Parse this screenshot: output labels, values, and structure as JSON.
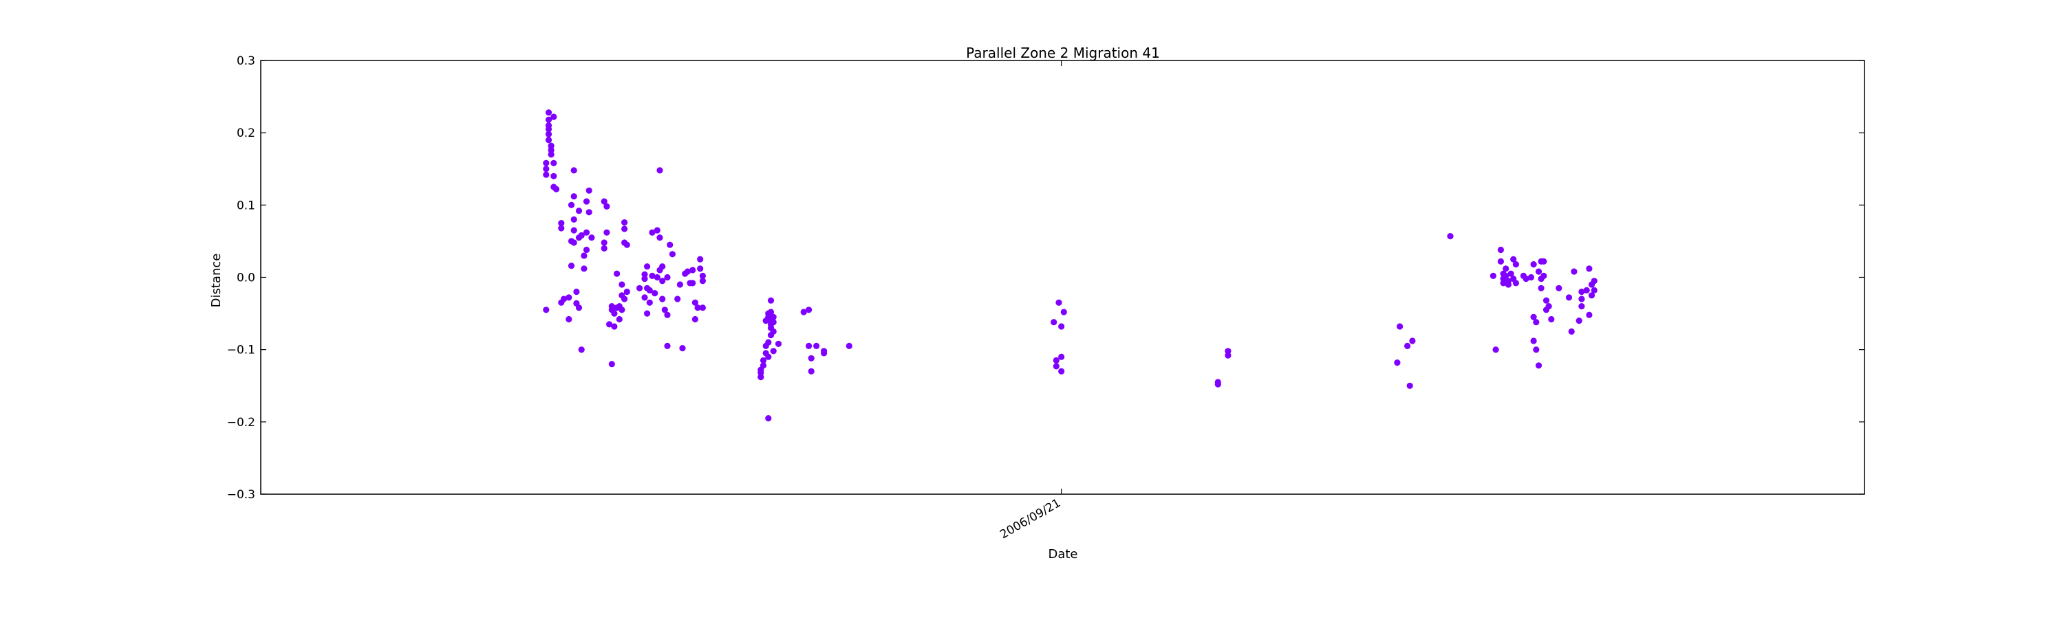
{
  "chart_data": {
    "type": "scatter",
    "title": "Parallel Zone 2 Migration 41",
    "xlabel": "Date",
    "ylabel": "Distance",
    "ylim": [
      -0.3,
      0.3
    ],
    "xlim": [
      "2005-11-08",
      "2007-08-05"
    ],
    "yticks": [
      "−0.3",
      "−0.2",
      "−0.1",
      "0.0",
      "0.1",
      "0.2",
      "0.3"
    ],
    "xticks": [
      {
        "date": "2006-09-21",
        "label": "2006/09/21"
      }
    ],
    "grid": false,
    "marker_color": "#8000ff",
    "series": [
      {
        "points": [
          [
            "2006-03-02",
            0.228
          ],
          [
            "2006-03-02",
            0.218
          ],
          [
            "2006-03-02",
            0.21
          ],
          [
            "2006-03-02",
            0.205
          ],
          [
            "2006-03-02",
            0.198
          ],
          [
            "2006-03-02",
            0.19
          ],
          [
            "2006-03-03",
            0.182
          ],
          [
            "2006-03-03",
            0.176
          ],
          [
            "2006-03-03",
            0.17
          ],
          [
            "2006-03-04",
            0.222
          ],
          [
            "2006-03-04",
            0.158
          ],
          [
            "2006-03-04",
            0.14
          ],
          [
            "2006-03-04",
            0.125
          ],
          [
            "2006-03-05",
            0.122
          ],
          [
            "2006-03-01",
            0.158
          ],
          [
            "2006-03-01",
            0.15
          ],
          [
            "2006-03-01",
            0.142
          ],
          [
            "2006-03-01",
            -0.045
          ],
          [
            "2006-03-07",
            0.075
          ],
          [
            "2006-03-07",
            0.068
          ],
          [
            "2006-03-07",
            -0.035
          ],
          [
            "2006-03-08",
            -0.03
          ],
          [
            "2006-03-10",
            -0.058
          ],
          [
            "2006-03-10",
            -0.028
          ],
          [
            "2006-03-11",
            0.1
          ],
          [
            "2006-03-11",
            0.05
          ],
          [
            "2006-03-11",
            0.016
          ],
          [
            "2006-03-12",
            0.148
          ],
          [
            "2006-03-12",
            0.112
          ],
          [
            "2006-03-12",
            0.08
          ],
          [
            "2006-03-12",
            0.065
          ],
          [
            "2006-03-12",
            0.048
          ],
          [
            "2006-03-13",
            -0.036
          ],
          [
            "2006-03-13",
            -0.02
          ],
          [
            "2006-03-14",
            0.055
          ],
          [
            "2006-03-14",
            0.092
          ],
          [
            "2006-03-14",
            -0.042
          ],
          [
            "2006-03-15",
            -0.1
          ],
          [
            "2006-03-15",
            0.058
          ],
          [
            "2006-03-16",
            0.012
          ],
          [
            "2006-03-16",
            0.03
          ],
          [
            "2006-03-17",
            0.105
          ],
          [
            "2006-03-17",
            0.062
          ],
          [
            "2006-03-17",
            0.038
          ],
          [
            "2006-03-18",
            0.12
          ],
          [
            "2006-03-18",
            0.09
          ],
          [
            "2006-03-19",
            0.055
          ],
          [
            "2006-03-24",
            0.105
          ],
          [
            "2006-03-24",
            0.048
          ],
          [
            "2006-03-24",
            0.04
          ],
          [
            "2006-03-25",
            0.098
          ],
          [
            "2006-03-25",
            0.062
          ],
          [
            "2006-03-26",
            -0.065
          ],
          [
            "2006-03-27",
            -0.045
          ],
          [
            "2006-03-27",
            -0.04
          ],
          [
            "2006-03-27",
            -0.12
          ],
          [
            "2006-03-28",
            -0.068
          ],
          [
            "2006-03-28",
            -0.05
          ],
          [
            "2006-03-29",
            0.005
          ],
          [
            "2006-03-29",
            -0.042
          ],
          [
            "2006-03-30",
            -0.058
          ],
          [
            "2006-03-30",
            -0.04
          ],
          [
            "2006-03-31",
            -0.01
          ],
          [
            "2006-03-31",
            -0.025
          ],
          [
            "2006-03-31",
            -0.045
          ],
          [
            "2006-04-01",
            0.076
          ],
          [
            "2006-04-01",
            0.067
          ],
          [
            "2006-04-01",
            0.048
          ],
          [
            "2006-04-01",
            -0.03
          ],
          [
            "2006-04-02",
            0.045
          ],
          [
            "2006-04-02",
            -0.02
          ],
          [
            "2006-04-07",
            -0.015
          ],
          [
            "2006-04-09",
            0.004
          ],
          [
            "2006-04-09",
            -0.002
          ],
          [
            "2006-04-09",
            -0.028
          ],
          [
            "2006-04-10",
            0.015
          ],
          [
            "2006-04-10",
            -0.015
          ],
          [
            "2006-04-10",
            -0.05
          ],
          [
            "2006-04-11",
            -0.018
          ],
          [
            "2006-04-11",
            -0.035
          ],
          [
            "2006-04-12",
            0.062
          ],
          [
            "2006-04-12",
            0.002
          ],
          [
            "2006-04-13",
            -0.022
          ],
          [
            "2006-04-14",
            0.065
          ],
          [
            "2006-04-14",
            0.0
          ],
          [
            "2006-04-15",
            0.148
          ],
          [
            "2006-04-15",
            0.055
          ],
          [
            "2006-04-15",
            0.01
          ],
          [
            "2006-04-16",
            0.015
          ],
          [
            "2006-04-16",
            -0.005
          ],
          [
            "2006-04-16",
            -0.03
          ],
          [
            "2006-04-17",
            -0.045
          ],
          [
            "2006-04-18",
            0.0
          ],
          [
            "2006-04-18",
            -0.052
          ],
          [
            "2006-04-18",
            -0.095
          ],
          [
            "2006-04-19",
            0.045
          ],
          [
            "2006-04-20",
            0.032
          ],
          [
            "2006-04-22",
            -0.03
          ],
          [
            "2006-04-23",
            -0.01
          ],
          [
            "2006-04-24",
            -0.098
          ],
          [
            "2006-04-25",
            0.005
          ],
          [
            "2006-04-26",
            0.008
          ],
          [
            "2006-04-27",
            -0.008
          ],
          [
            "2006-04-28",
            0.01
          ],
          [
            "2006-04-28",
            -0.008
          ],
          [
            "2006-04-29",
            -0.035
          ],
          [
            "2006-04-29",
            -0.058
          ],
          [
            "2006-04-30",
            -0.042
          ],
          [
            "2006-05-01",
            0.025
          ],
          [
            "2006-05-01",
            0.012
          ],
          [
            "2006-05-02",
            0.002
          ],
          [
            "2006-05-02",
            -0.005
          ],
          [
            "2006-05-02",
            -0.042
          ],
          [
            "2006-05-25",
            -0.128
          ],
          [
            "2006-05-25",
            -0.138
          ],
          [
            "2006-05-25",
            -0.132
          ],
          [
            "2006-05-26",
            -0.122
          ],
          [
            "2006-05-26",
            -0.115
          ],
          [
            "2006-05-27",
            -0.105
          ],
          [
            "2006-05-27",
            -0.095
          ],
          [
            "2006-05-27",
            -0.06
          ],
          [
            "2006-05-28",
            -0.195
          ],
          [
            "2006-05-28",
            -0.11
          ],
          [
            "2006-05-28",
            -0.09
          ],
          [
            "2006-05-28",
            -0.055
          ],
          [
            "2006-05-28",
            -0.05
          ],
          [
            "2006-05-29",
            -0.08
          ],
          [
            "2006-05-29",
            -0.07
          ],
          [
            "2006-05-29",
            -0.065
          ],
          [
            "2006-05-29",
            -0.06
          ],
          [
            "2006-05-29",
            -0.048
          ],
          [
            "2006-05-29",
            -0.032
          ],
          [
            "2006-05-30",
            -0.102
          ],
          [
            "2006-05-30",
            -0.075
          ],
          [
            "2006-05-30",
            -0.062
          ],
          [
            "2006-05-30",
            -0.055
          ],
          [
            "2006-06-01",
            -0.092
          ],
          [
            "2006-06-11",
            -0.048
          ],
          [
            "2006-06-13",
            -0.045
          ],
          [
            "2006-06-13",
            -0.095
          ],
          [
            "2006-06-14",
            -0.112
          ],
          [
            "2006-06-14",
            -0.13
          ],
          [
            "2006-06-16",
            -0.095
          ],
          [
            "2006-06-19",
            -0.102
          ],
          [
            "2006-06-19",
            -0.105
          ],
          [
            "2006-06-29",
            -0.095
          ],
          [
            "2006-09-18",
            -0.062
          ],
          [
            "2006-09-19",
            -0.115
          ],
          [
            "2006-09-19",
            -0.123
          ],
          [
            "2006-09-20",
            -0.035
          ],
          [
            "2006-09-21",
            -0.068
          ],
          [
            "2006-09-21",
            -0.11
          ],
          [
            "2006-09-21",
            -0.13
          ],
          [
            "2006-09-22",
            -0.048
          ],
          [
            "2006-11-22",
            -0.145
          ],
          [
            "2006-11-22",
            -0.148
          ],
          [
            "2006-11-26",
            -0.102
          ],
          [
            "2006-11-26",
            -0.108
          ],
          [
            "2007-02-01",
            -0.118
          ],
          [
            "2007-02-02",
            -0.068
          ],
          [
            "2007-02-05",
            -0.095
          ],
          [
            "2007-02-06",
            -0.15
          ],
          [
            "2007-02-07",
            -0.088
          ],
          [
            "2007-02-22",
            0.057
          ],
          [
            "2007-03-11",
            0.002
          ],
          [
            "2007-03-12",
            -0.1
          ],
          [
            "2007-03-14",
            0.038
          ],
          [
            "2007-03-14",
            0.022
          ],
          [
            "2007-03-15",
            0.005
          ],
          [
            "2007-03-15",
            -0.002
          ],
          [
            "2007-03-15",
            -0.008
          ],
          [
            "2007-03-16",
            0.012
          ],
          [
            "2007-03-16",
            0.002
          ],
          [
            "2007-03-17",
            -0.005
          ],
          [
            "2007-03-17",
            -0.01
          ],
          [
            "2007-03-18",
            0.005
          ],
          [
            "2007-03-19",
            0.025
          ],
          [
            "2007-03-19",
            -0.002
          ],
          [
            "2007-03-20",
            0.018
          ],
          [
            "2007-03-20",
            -0.008
          ],
          [
            "2007-03-23",
            0.002
          ],
          [
            "2007-03-24",
            -0.002
          ],
          [
            "2007-03-26",
            0.0
          ],
          [
            "2007-03-27",
            0.018
          ],
          [
            "2007-03-27",
            -0.055
          ],
          [
            "2007-03-27",
            -0.088
          ],
          [
            "2007-03-28",
            -0.062
          ],
          [
            "2007-03-28",
            -0.1
          ],
          [
            "2007-03-29",
            0.008
          ],
          [
            "2007-03-29",
            -0.122
          ],
          [
            "2007-03-30",
            0.022
          ],
          [
            "2007-03-30",
            -0.002
          ],
          [
            "2007-03-30",
            -0.015
          ],
          [
            "2007-03-31",
            0.022
          ],
          [
            "2007-03-31",
            0.002
          ],
          [
            "2007-04-01",
            -0.032
          ],
          [
            "2007-04-01",
            -0.045
          ],
          [
            "2007-04-02",
            -0.04
          ],
          [
            "2007-04-03",
            -0.058
          ],
          [
            "2007-04-06",
            -0.015
          ],
          [
            "2007-04-10",
            -0.028
          ],
          [
            "2007-04-11",
            -0.075
          ],
          [
            "2007-04-12",
            0.008
          ],
          [
            "2007-04-14",
            -0.06
          ],
          [
            "2007-04-15",
            -0.02
          ],
          [
            "2007-04-15",
            -0.03
          ],
          [
            "2007-04-15",
            -0.04
          ],
          [
            "2007-04-17",
            -0.018
          ],
          [
            "2007-04-18",
            0.012
          ],
          [
            "2007-04-18",
            -0.052
          ],
          [
            "2007-04-19",
            -0.01
          ],
          [
            "2007-04-19",
            -0.025
          ],
          [
            "2007-04-20",
            -0.005
          ],
          [
            "2007-04-20",
            -0.018
          ]
        ]
      }
    ]
  }
}
